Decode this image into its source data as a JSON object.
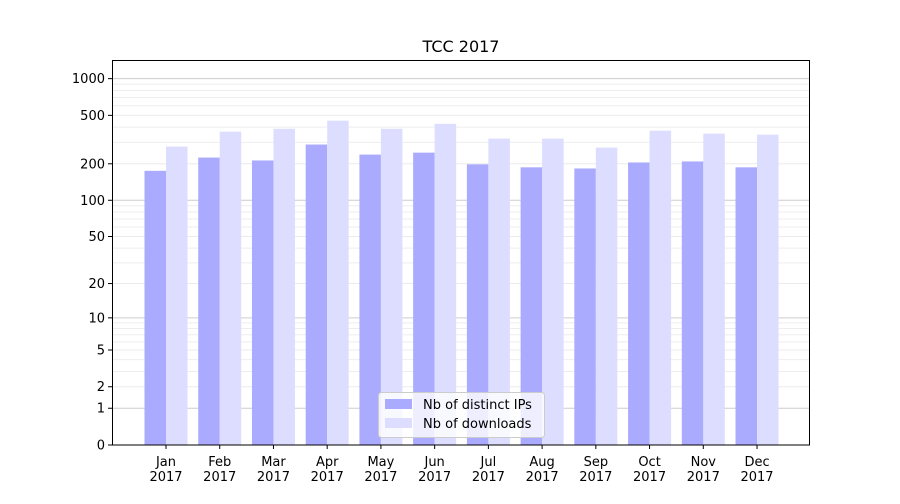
{
  "chart_data": {
    "type": "bar",
    "title": "TCC 2017",
    "xlabel": "",
    "ylabel": "",
    "yscale": "log10(1+y)",
    "ylim": [
      0,
      1300
    ],
    "yticks": [
      0,
      1,
      2,
      5,
      10,
      20,
      50,
      100,
      200,
      500,
      1000
    ],
    "ytick_labels": [
      "0",
      "1",
      "2",
      "5",
      "10",
      "20",
      "50",
      "100",
      "200",
      "500",
      "1000"
    ],
    "grid": true,
    "legend_position": "lower-center",
    "categories": [
      "Jan\n2017",
      "Feb\n2017",
      "Mar\n2017",
      "Apr\n2017",
      "May\n2017",
      "Jun\n2017",
      "Jul\n2017",
      "Aug\n2017",
      "Sep\n2017",
      "Oct\n2017",
      "Nov\n2017",
      "Dec\n2017"
    ],
    "series": [
      {
        "name": "Nb of distinct IPs",
        "color": "#aaaaff",
        "values": [
          175,
          225,
          213,
          288,
          238,
          247,
          198,
          187,
          183,
          205,
          209,
          187
        ]
      },
      {
        "name": "Nb of downloads",
        "color": "#ddddff",
        "values": [
          277,
          367,
          388,
          452,
          388,
          426,
          322,
          322,
          272,
          374,
          354,
          347
        ]
      }
    ]
  }
}
